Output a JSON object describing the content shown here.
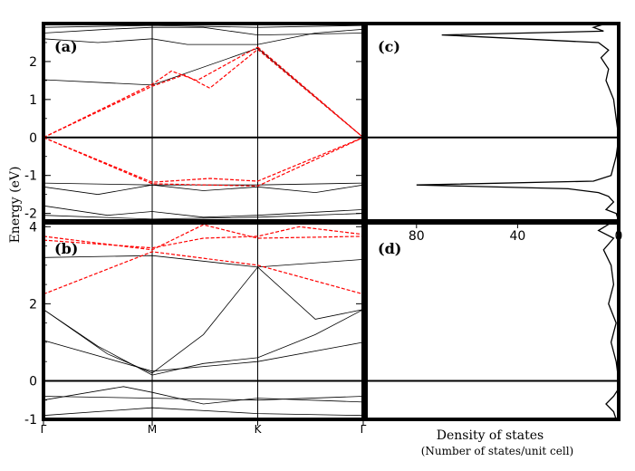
{
  "chart_data": {
    "type": "line",
    "ylabel": "Energy (eV)",
    "xlabel": "Density of states",
    "xlabel_sub": "(Number of states/unit cell)",
    "k_points": [
      "Γ",
      "M",
      "K",
      "Γ"
    ],
    "k_positions": [
      0,
      0.34,
      0.67,
      1.0
    ],
    "dos_ticks": [
      "80",
      "40",
      "0"
    ],
    "dos_tick_values": [
      80,
      40,
      0
    ],
    "dos_xlim": [
      0,
      100
    ],
    "panels": [
      {
        "label": "(a)",
        "ylim": [
          -2.2,
          3.0
        ],
        "yticks": [
          -2,
          -1,
          0,
          1,
          2
        ],
        "ytick_labels": [
          "-2",
          "-1",
          "0",
          "1",
          "2"
        ],
        "bands_black": [
          [
            [
              0,
              1.52
            ],
            [
              0.34,
              1.38
            ],
            [
              0.67,
              2.35
            ],
            [
              1.0,
              0.0
            ]
          ],
          [
            [
              0,
              2.6
            ],
            [
              0.17,
              2.5
            ],
            [
              0.34,
              2.6
            ],
            [
              0.45,
              2.45
            ],
            [
              0.67,
              2.45
            ],
            [
              0.85,
              2.75
            ],
            [
              1.0,
              2.85
            ]
          ],
          [
            [
              0,
              2.75
            ],
            [
              0.2,
              2.85
            ],
            [
              0.34,
              2.9
            ],
            [
              0.5,
              2.9
            ],
            [
              0.67,
              2.7
            ],
            [
              1.0,
              2.75
            ]
          ],
          [
            [
              0,
              2.9
            ],
            [
              0.34,
              2.95
            ],
            [
              0.67,
              2.9
            ],
            [
              1.0,
              2.95
            ]
          ],
          [
            [
              0,
              -1.2
            ],
            [
              0.34,
              -1.25
            ],
            [
              0.67,
              -1.25
            ],
            [
              1.0,
              -1.2
            ]
          ],
          [
            [
              0,
              -1.3
            ],
            [
              0.17,
              -1.5
            ],
            [
              0.34,
              -1.25
            ],
            [
              0.5,
              -1.4
            ],
            [
              0.67,
              -1.3
            ],
            [
              0.85,
              -1.45
            ],
            [
              1.0,
              -1.25
            ]
          ],
          [
            [
              0,
              -1.8
            ],
            [
              0.2,
              -2.05
            ],
            [
              0.34,
              -1.95
            ],
            [
              0.5,
              -2.1
            ],
            [
              0.67,
              -2.05
            ],
            [
              1.0,
              -1.9
            ]
          ],
          [
            [
              0,
              -2.05
            ],
            [
              0.34,
              -2.15
            ],
            [
              0.67,
              -2.1
            ],
            [
              1.0,
              -2.0
            ]
          ]
        ],
        "bands_red": [
          [
            [
              0,
              0
            ],
            [
              0.34,
              1.4
            ],
            [
              0.4,
              1.75
            ],
            [
              0.48,
              1.5
            ],
            [
              0.67,
              2.38
            ]
          ],
          [
            [
              0,
              0
            ],
            [
              0.34,
              1.35
            ],
            [
              0.44,
              1.65
            ],
            [
              0.52,
              1.3
            ],
            [
              0.67,
              2.32
            ]
          ],
          [
            [
              0.67,
              2.38
            ],
            [
              1.0,
              0
            ]
          ],
          [
            [
              0.67,
              2.32
            ],
            [
              1.0,
              0
            ]
          ],
          [
            [
              0,
              0
            ],
            [
              0.34,
              -1.22
            ],
            [
              0.67,
              -1.28
            ],
            [
              1.0,
              0
            ]
          ],
          [
            [
              0,
              0
            ],
            [
              0.34,
              -1.18
            ],
            [
              0.52,
              -1.08
            ],
            [
              0.67,
              -1.15
            ],
            [
              1.0,
              0
            ]
          ]
        ],
        "dos": [
          [
            0,
            -2.2
          ],
          [
            1,
            -2.0
          ],
          [
            5,
            -1.9
          ],
          [
            2,
            -1.7
          ],
          [
            4,
            -1.55
          ],
          [
            8,
            -1.45
          ],
          [
            20,
            -1.35
          ],
          [
            80,
            -1.25
          ],
          [
            10,
            -1.15
          ],
          [
            3,
            -1.0
          ],
          [
            1,
            -0.5
          ],
          [
            0,
            0
          ],
          [
            1,
            0.5
          ],
          [
            2,
            1.0
          ],
          [
            5,
            1.5
          ],
          [
            4,
            1.8
          ],
          [
            7,
            2.1
          ],
          [
            4,
            2.3
          ],
          [
            8,
            2.5
          ],
          [
            70,
            2.7
          ],
          [
            6,
            2.8
          ],
          [
            10,
            2.9
          ],
          [
            5,
            3.0
          ]
        ]
      },
      {
        "label": "(b)",
        "ylim": [
          -1.0,
          4.1
        ],
        "yticks": [
          -1,
          0,
          2,
          4
        ],
        "ytick_labels": [
          "-1",
          "0",
          "2",
          "4"
        ],
        "bands_black": [
          [
            [
              0,
              1.85
            ],
            [
              0.17,
              0.9
            ],
            [
              0.34,
              0.15
            ],
            [
              0.5,
              0.45
            ],
            [
              0.67,
              0.6
            ],
            [
              0.85,
              1.2
            ],
            [
              1.0,
              1.85
            ]
          ],
          [
            [
              0,
              1.85
            ],
            [
              0.2,
              0.7
            ],
            [
              0.34,
              0.2
            ],
            [
              0.5,
              1.2
            ],
            [
              0.67,
              2.95
            ],
            [
              0.85,
              1.6
            ],
            [
              1.0,
              1.85
            ]
          ],
          [
            [
              0,
              1.05
            ],
            [
              0.34,
              0.25
            ],
            [
              0.67,
              0.5
            ],
            [
              1.0,
              1.0
            ]
          ],
          [
            [
              0,
              3.2
            ],
            [
              0.34,
              3.25
            ],
            [
              0.67,
              2.95
            ],
            [
              1.0,
              3.15
            ]
          ],
          [
            [
              0,
              -0.4
            ],
            [
              0.34,
              -0.45
            ],
            [
              0.67,
              -0.5
            ],
            [
              1.0,
              -0.4
            ]
          ],
          [
            [
              0,
              -0.5
            ],
            [
              0.25,
              -0.15
            ],
            [
              0.34,
              -0.3
            ],
            [
              0.5,
              -0.6
            ],
            [
              0.67,
              -0.45
            ],
            [
              1.0,
              -0.55
            ]
          ],
          [
            [
              0,
              -0.9
            ],
            [
              0.34,
              -0.7
            ],
            [
              0.67,
              -0.85
            ],
            [
              1.0,
              -0.9
            ]
          ]
        ],
        "bands_red": [
          [
            [
              0,
              2.25
            ],
            [
              0.34,
              3.35
            ],
            [
              0.67,
              3.0
            ],
            [
              1.0,
              2.25
            ]
          ],
          [
            [
              0,
              3.65
            ],
            [
              0.34,
              3.45
            ],
            [
              0.5,
              3.7
            ],
            [
              0.67,
              3.75
            ],
            [
              0.8,
              4.0
            ],
            [
              1.0,
              3.8
            ]
          ],
          [
            [
              0,
              3.75
            ],
            [
              0.34,
              3.4
            ],
            [
              0.5,
              4.05
            ],
            [
              0.67,
              3.7
            ],
            [
              1.0,
              3.75
            ]
          ]
        ],
        "dos": [
          [
            1,
            -1.0
          ],
          [
            2,
            -0.8
          ],
          [
            5,
            -0.6
          ],
          [
            2,
            -0.4
          ],
          [
            0,
            -0.2
          ],
          [
            0,
            0
          ],
          [
            1,
            0.5
          ],
          [
            3,
            1.0
          ],
          [
            1,
            1.5
          ],
          [
            4,
            2.0
          ],
          [
            2,
            2.5
          ],
          [
            3,
            3.0
          ],
          [
            6,
            3.4
          ],
          [
            2,
            3.7
          ],
          [
            8,
            3.9
          ],
          [
            3,
            4.1
          ]
        ]
      }
    ]
  }
}
